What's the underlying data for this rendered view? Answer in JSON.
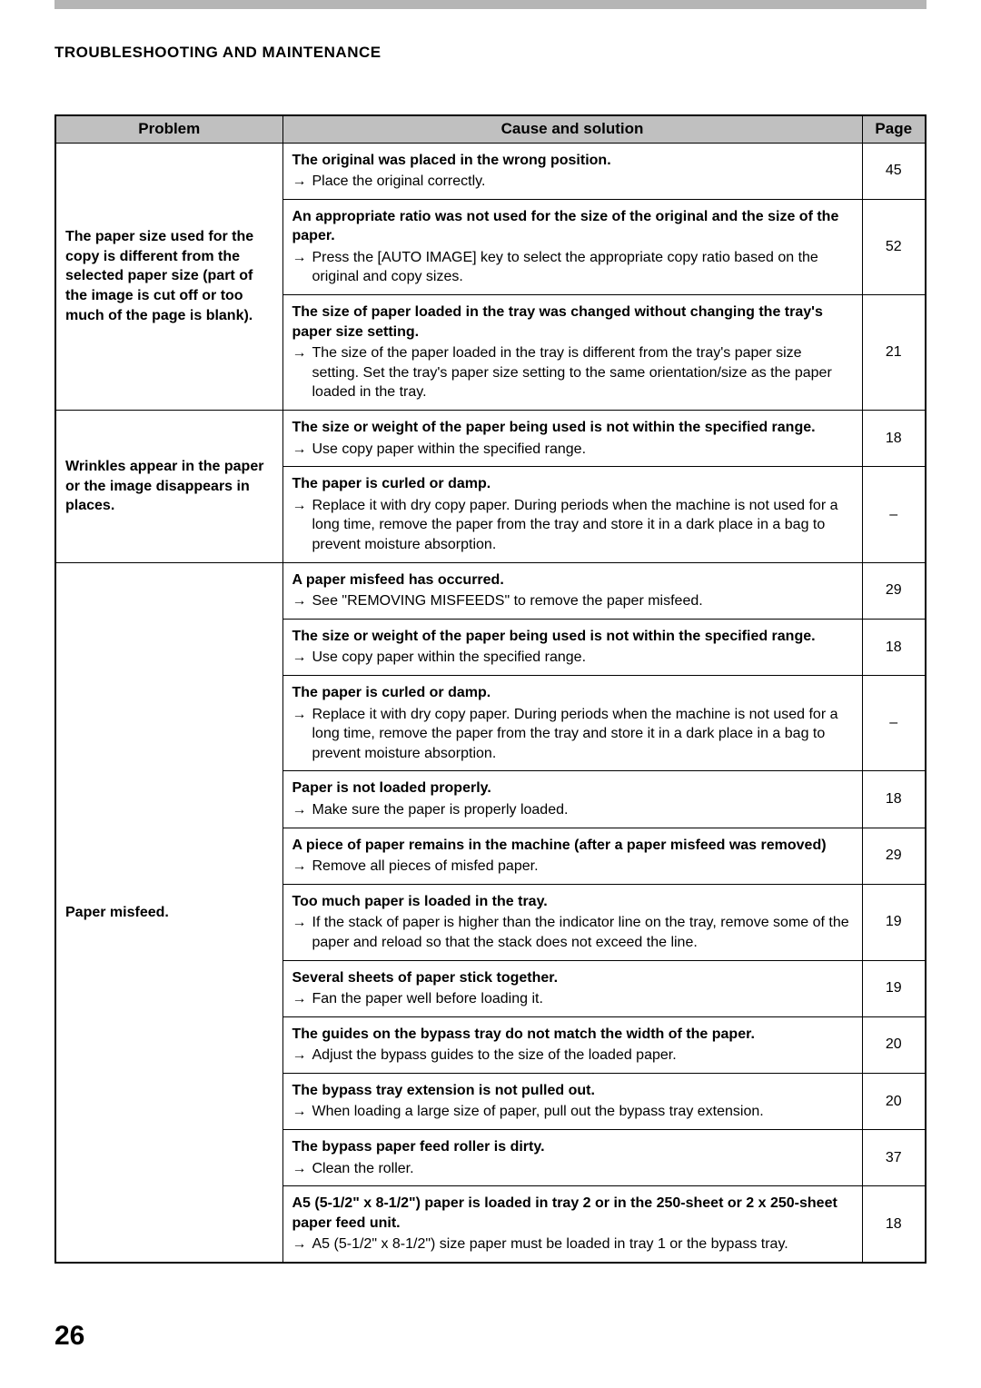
{
  "section_header": "TROUBLESHOOTING AND MAINTENANCE",
  "page_number": "26",
  "columns": {
    "problem": "Problem",
    "cause": "Cause and solution",
    "page": "Page"
  },
  "groups": [
    {
      "problem": "The paper size used for the copy is different from the selected paper size (part of the image is cut off or too much of the page is blank).",
      "solutions": [
        {
          "title": "The original was placed in the wrong position.",
          "action": "Place the original correctly.",
          "page": "45"
        },
        {
          "title": "An appropriate ratio was not used for the size of the original and the size of the paper.",
          "action": "Press the [AUTO IMAGE] key to select the appropriate copy ratio based on the original and copy sizes.",
          "page": "52"
        },
        {
          "title": "The size of paper loaded in the tray was changed without changing the tray's paper size setting.",
          "action": "The size of the paper loaded in the tray is different from the tray's paper size setting. Set the tray's paper size setting to the same orientation/size as the paper loaded in the tray.",
          "page": "21"
        }
      ]
    },
    {
      "problem": "Wrinkles appear in the paper or the image disappears in places.",
      "solutions": [
        {
          "title": "The size or weight of the paper being used is not within the specified range.",
          "action": "Use copy paper within the specified range.",
          "page": "18"
        },
        {
          "title": "The paper is curled or damp.",
          "action": "Replace it with dry copy paper. During periods when the machine is not used for a long time, remove the paper from the tray and store it in a dark place in a bag to prevent moisture absorption.",
          "page": "–"
        }
      ]
    },
    {
      "problem": "Paper misfeed.",
      "solutions": [
        {
          "title": "A paper misfeed has occurred.",
          "action": "See \"REMOVING MISFEEDS\" to remove the paper misfeed.",
          "page": "29"
        },
        {
          "title": "The size or weight of the paper being used is not within the specified range.",
          "action": "Use copy paper within the specified range.",
          "page": "18"
        },
        {
          "title": "The paper is curled or damp.",
          "action": "Replace it with dry copy paper. During periods when the machine is not used for a long time, remove the paper from the tray and store it in a dark place in a bag to prevent moisture absorption.",
          "page": "–"
        },
        {
          "title": "Paper is not loaded properly.",
          "action": "Make sure the paper is properly loaded.",
          "page": "18"
        },
        {
          "title": "A piece of paper remains in the machine (after a paper misfeed was removed)",
          "action": "Remove all pieces of misfed paper.",
          "page": "29"
        },
        {
          "title": "Too much paper is loaded in the tray.",
          "action": "If the stack of paper is higher than the indicator line on the tray, remove some of the paper and reload so that the stack does not exceed the line.",
          "page": "19"
        },
        {
          "title": "Several sheets of paper stick together.",
          "action": "Fan the paper well before loading it.",
          "page": "19"
        },
        {
          "title": "The guides on the bypass tray do not match the width of the paper.",
          "action": "Adjust the bypass guides to the size of the loaded paper.",
          "page": "20"
        },
        {
          "title": "The bypass tray extension is not pulled out.",
          "action": "When loading a large size of paper, pull out the bypass tray extension.",
          "page": "20"
        },
        {
          "title": "The bypass paper feed roller is dirty.",
          "action": "Clean the roller.",
          "page": "37"
        },
        {
          "title": "A5 (5-1/2\" x 8-1/2\") paper is loaded in tray 2 or in the 250-sheet or 2 x 250-sheet paper feed unit.",
          "action": "A5 (5-1/2\" x 8-1/2\") size paper must be loaded in tray 1 or the bypass tray.",
          "page": "18"
        }
      ]
    }
  ]
}
